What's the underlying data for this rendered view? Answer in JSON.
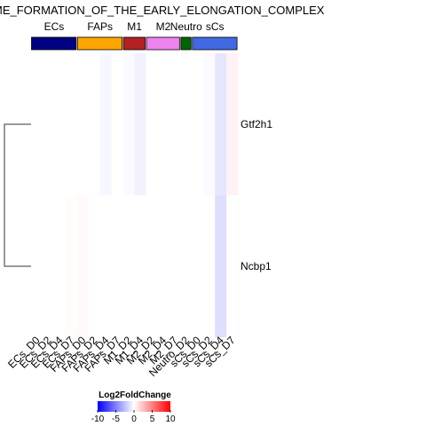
{
  "chart_data": {
    "type": "heatmap",
    "title": "ME_FORMATION_OF_THE_EARLY_ELONGATION_COMPLEX",
    "columns": [
      "ECs_D0",
      "ECs_D2",
      "ECs_D4",
      "ECs_D7",
      "FAPs_D0",
      "FAPs_D2",
      "FAPs_D4",
      "FAPs_D7",
      "M1_D2",
      "M1_D4",
      "M2_D2",
      "M2_D4",
      "M2_D7",
      "Neutro_D2",
      "sCs_D0",
      "sCs_D2",
      "sCs_D4",
      "sCs_D7"
    ],
    "rows": [
      "Gtf2h1",
      "Ncbp1"
    ],
    "values": [
      [
        0.0,
        0.0,
        0.0,
        0.0,
        0.0,
        0.0,
        -0.3,
        0.0,
        -0.2,
        -0.5,
        0.0,
        0.0,
        0.0,
        0.0,
        0.0,
        -0.2,
        -1.0,
        0.5
      ],
      [
        0.0,
        0.0,
        0.0,
        0.1,
        0.2,
        0.0,
        0.0,
        0.0,
        0.0,
        0.0,
        0.0,
        0.0,
        0.0,
        0.0,
        0.0,
        0.0,
        -1.3,
        0.0
      ]
    ],
    "groups": [
      {
        "name": "ECs",
        "color": "#000080",
        "span": 4
      },
      {
        "name": "FAPs",
        "color": "#FFA500",
        "span": 4
      },
      {
        "name": "M1",
        "color": "#B22222",
        "span": 2
      },
      {
        "name": "M2",
        "color": "#EE82EE",
        "span": 3
      },
      {
        "name": "Neutro",
        "color": "#006400",
        "span": 1
      },
      {
        "name": "sCs",
        "color": "#4169E1",
        "span": 4
      }
    ],
    "legend": {
      "title": "Log2FoldChange",
      "ticks": [
        -10,
        -5,
        0,
        5,
        10
      ],
      "range": [
        -10,
        10
      ],
      "low_color": "#0000FF",
      "mid_color": "#FFFFFF",
      "high_color": "#FF0000"
    }
  }
}
